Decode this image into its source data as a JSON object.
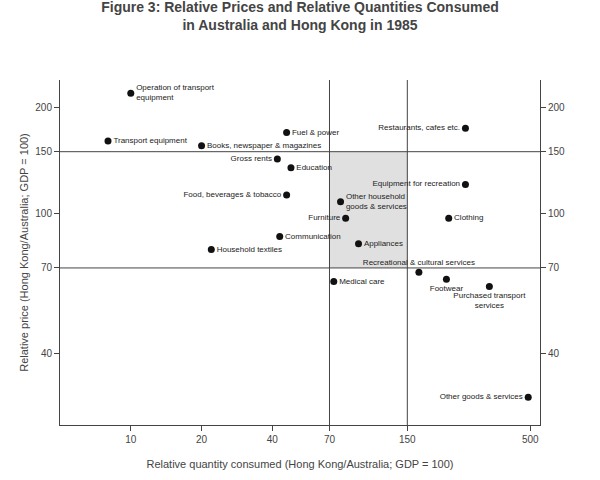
{
  "chart_data": {
    "type": "scatter",
    "title": "Figure 3: Relative Prices and Relative Quantities Consumed\nin Australia and Hong Kong in 1985",
    "xlabel": "Relative quantity consumed (Hong Kong/Australia; GDP = 100)",
    "ylabel": "Relative price (Hong Kong/Australia; GDP = 100)",
    "log": true,
    "grid": false,
    "xlim": [
      5,
      550
    ],
    "ylim": [
      25,
      240
    ],
    "xticks": [
      10,
      20,
      40,
      70,
      150,
      500
    ],
    "yticks": [
      40,
      70,
      100,
      150,
      200
    ],
    "y2lim": [
      25,
      240
    ],
    "y2ticks": [
      40,
      70,
      100,
      150,
      200
    ],
    "color": "#111111",
    "label_color": "#222222",
    "reference_lines": {
      "x": [
        70,
        150
      ],
      "y": [
        70,
        150
      ],
      "color": "#444444"
    },
    "shaded_region": {
      "x": [
        70,
        150
      ],
      "y": [
        70,
        150
      ],
      "color": "#e0e0e0"
    },
    "points": [
      {
        "x": 10,
        "y": 220,
        "label": "Operation of transport\nequipment"
      },
      {
        "x": 8,
        "y": 161,
        "label": "Transport equipment"
      },
      {
        "x": 46,
        "y": 170,
        "label": "Fuel & power"
      },
      {
        "x": 20,
        "y": 156,
        "label": "Books, newspaper & magazines"
      },
      {
        "x": 42,
        "y": 143,
        "label": "Gross rents"
      },
      {
        "x": 48,
        "y": 135,
        "label": "Education"
      },
      {
        "x": 46,
        "y": 113,
        "label": "Food, beverages & tobacco"
      },
      {
        "x": 43,
        "y": 86,
        "label": "Communication"
      },
      {
        "x": 22,
        "y": 79,
        "label": "Household textiles"
      },
      {
        "x": 78,
        "y": 108,
        "label": "Other household\ngoods & services"
      },
      {
        "x": 82,
        "y": 97,
        "label": "Furniture"
      },
      {
        "x": 93,
        "y": 82,
        "label": "Appliances"
      },
      {
        "x": 73,
        "y": 64,
        "label": "Medical care"
      },
      {
        "x": 265,
        "y": 175,
        "label": "Restaurants, cafes etc."
      },
      {
        "x": 265,
        "y": 121,
        "label": "Equipment for recreation"
      },
      {
        "x": 225,
        "y": 97,
        "label": "Clothing"
      },
      {
        "x": 168,
        "y": 68,
        "label": "Recreational & cultural services"
      },
      {
        "x": 220,
        "y": 65,
        "label": "Footwear"
      },
      {
        "x": 335,
        "y": 62,
        "label": "Purchased transport\nservices"
      },
      {
        "x": 490,
        "y": 30,
        "label": "Other goods & services"
      }
    ]
  }
}
